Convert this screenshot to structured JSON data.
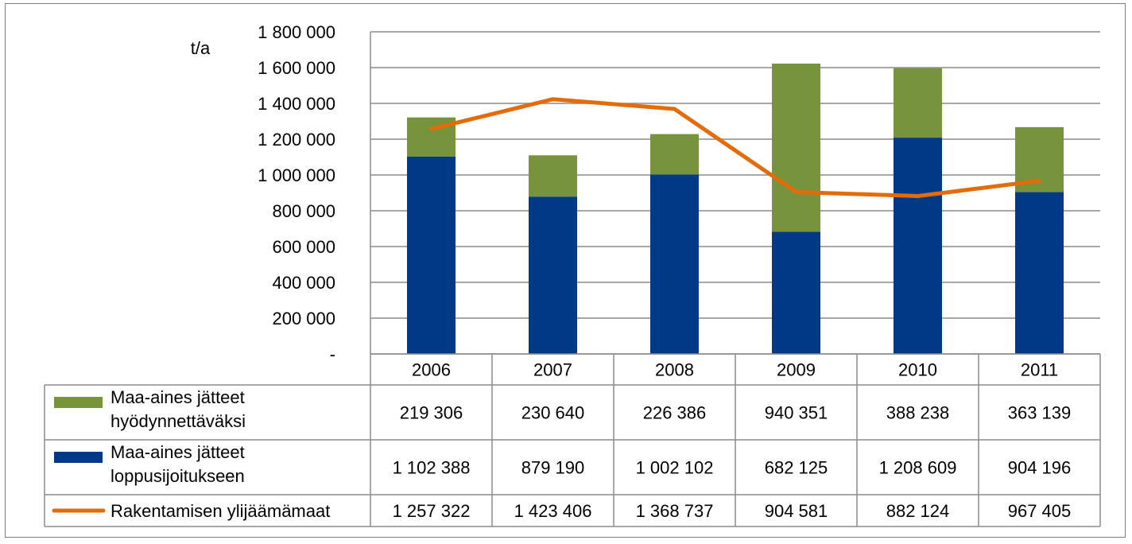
{
  "chart_data": {
    "type": "bar",
    "stacked": true,
    "ylabel": "t/a",
    "ylim": [
      0,
      1800000
    ],
    "y_ticks": [
      "-",
      "200 000",
      "400 000",
      "600 000",
      "800 000",
      "1 000 000",
      "1 200 000",
      "1 400 000",
      "1 600 000",
      "1 800 000"
    ],
    "y_tick_values": [
      0,
      200000,
      400000,
      600000,
      800000,
      1000000,
      1200000,
      1400000,
      1600000,
      1800000
    ],
    "grid": true,
    "categories": [
      "2006",
      "2007",
      "2008",
      "2009",
      "2010",
      "2011"
    ],
    "series": [
      {
        "name": "Maa-aines jätteet hyödynnettäväksi",
        "name_lines": [
          "Maa-aines jätteet",
          "hyödynnettäväksi"
        ],
        "kind": "bar",
        "color": "#77933c",
        "values": [
          219306,
          230640,
          226386,
          940351,
          388238,
          363139
        ],
        "labels": [
          "219 306",
          "230 640",
          "226 386",
          "940 351",
          "388 238",
          "363 139"
        ]
      },
      {
        "name": "Maa-aines jätteet loppusijoitukseen",
        "name_lines": [
          "Maa-aines jätteet",
          "loppusijoitukseen"
        ],
        "kind": "bar",
        "color": "#003a87",
        "values": [
          1102388,
          879190,
          1002102,
          682125,
          1208609,
          904196
        ],
        "labels": [
          "1 102 388",
          "879 190",
          "1 002 102",
          "682 125",
          "1 208 609",
          "904 196"
        ]
      },
      {
        "name": "Rakentamisen ylijäämämaat",
        "name_lines": [
          "Rakentamisen ylijäämämaat"
        ],
        "kind": "line",
        "color": "#e36c09",
        "values": [
          1257322,
          1423406,
          1368737,
          904581,
          882124,
          967405
        ],
        "labels": [
          "1 257 322",
          "1 423 406",
          "1 368 737",
          "904 581",
          "882 124",
          "967 405"
        ]
      }
    ],
    "legend": "data-table"
  }
}
